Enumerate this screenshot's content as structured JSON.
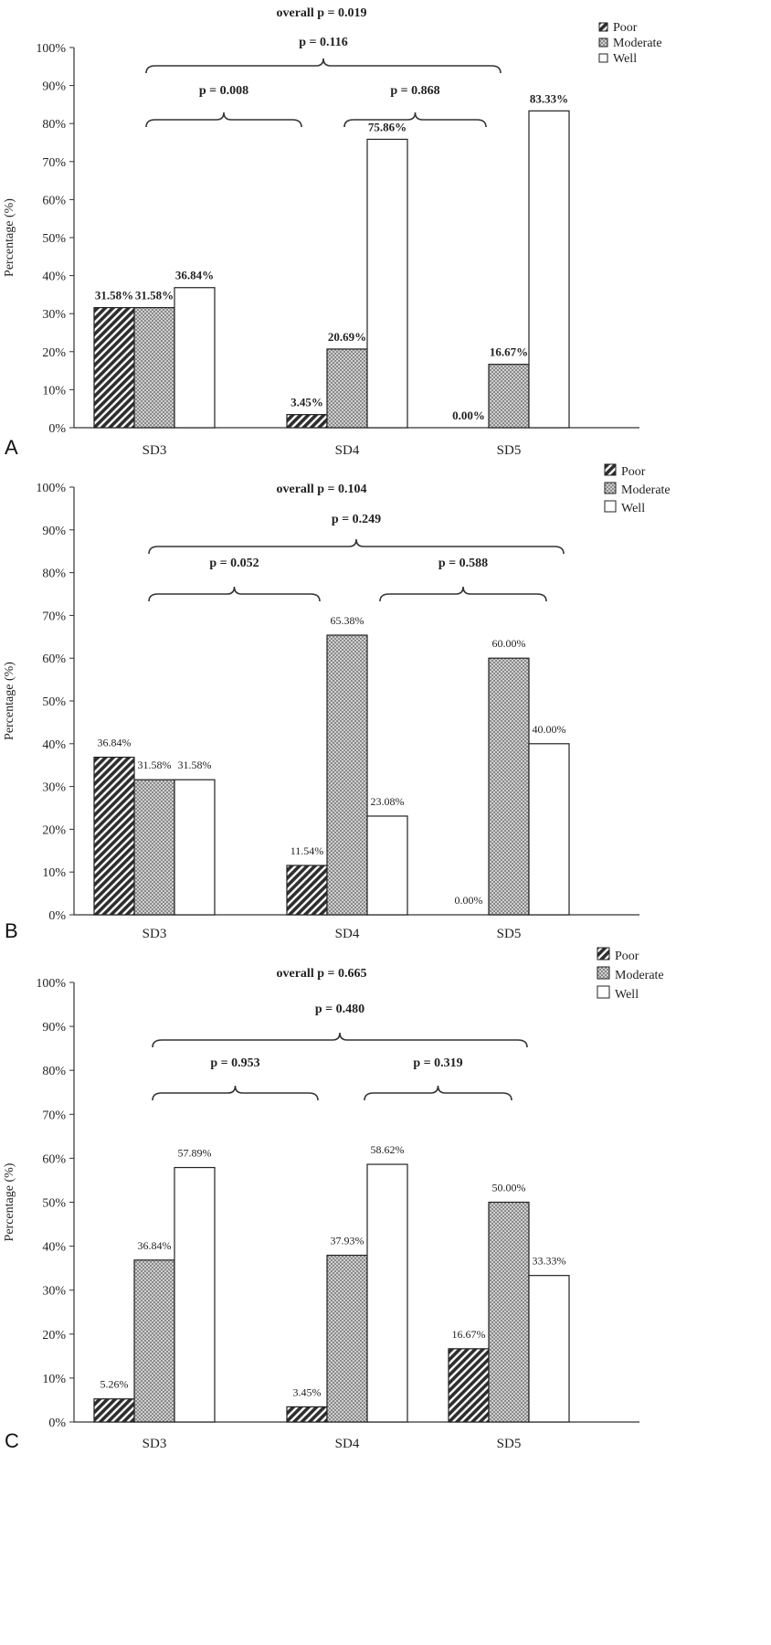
{
  "colors": {
    "poor": "#3a3a3a",
    "moderate": "#b8b8b8",
    "well": "#ffffff",
    "stroke": "#222222"
  },
  "chart_data": [
    {
      "type": "bar",
      "panel_label": "A",
      "categories": [
        "SD3",
        "SD4",
        "SD5"
      ],
      "series": [
        {
          "name": "Poor",
          "values": [
            31.58,
            3.45,
            0.0
          ]
        },
        {
          "name": "Moderate",
          "values": [
            31.58,
            20.69,
            16.67
          ]
        },
        {
          "name": "Well",
          "values": [
            36.84,
            75.86,
            83.33
          ]
        }
      ],
      "value_labels": [
        [
          "31.58%",
          "3.45%",
          "0.00%"
        ],
        [
          "31.58%",
          "20.69%",
          "16.67%"
        ],
        [
          "36.84%",
          "75.86%",
          "83.33%"
        ]
      ],
      "ylabel": "Percentage (%)",
      "yticks": [
        "0%",
        "10%",
        "20%",
        "30%",
        "40%",
        "50%",
        "60%",
        "70%",
        "80%",
        "90%",
        "100%"
      ],
      "ylim": [
        0,
        100
      ],
      "legend": "top-right",
      "annotations": {
        "overall": "overall p = 0.019",
        "p_sd3_sd5": "p = 0.116",
        "p_sd3_sd4": "p = 0.008",
        "p_sd4_sd5": "p = 0.868"
      }
    },
    {
      "type": "bar",
      "panel_label": "B",
      "categories": [
        "SD3",
        "SD4",
        "SD5"
      ],
      "series": [
        {
          "name": "Poor",
          "values": [
            36.84,
            11.54,
            0.0
          ]
        },
        {
          "name": "Moderate",
          "values": [
            31.58,
            65.38,
            60.0
          ]
        },
        {
          "name": "Well",
          "values": [
            31.58,
            23.08,
            40.0
          ]
        }
      ],
      "value_labels": [
        [
          "36.84%",
          "11.54%",
          "0.00%"
        ],
        [
          "31.58%",
          "65.38%",
          "60.00%"
        ],
        [
          "31.58%",
          "23.08%",
          "40.00%"
        ]
      ],
      "ylabel": "Percentage (%)",
      "yticks": [
        "0%",
        "10%",
        "20%",
        "30%",
        "40%",
        "50%",
        "60%",
        "70%",
        "80%",
        "90%",
        "100%"
      ],
      "ylim": [
        0,
        100
      ],
      "legend": "top-right",
      "annotations": {
        "overall": "overall p = 0.104",
        "p_sd3_sd5": "p = 0.249",
        "p_sd3_sd4": "p = 0.052",
        "p_sd4_sd5": "p = 0.588"
      }
    },
    {
      "type": "bar",
      "panel_label": "C",
      "categories": [
        "SD3",
        "SD4",
        "SD5"
      ],
      "series": [
        {
          "name": "Poor",
          "values": [
            5.26,
            3.45,
            16.67
          ]
        },
        {
          "name": "Moderate",
          "values": [
            36.84,
            37.93,
            50.0
          ]
        },
        {
          "name": "Well",
          "values": [
            57.89,
            58.62,
            33.33
          ]
        }
      ],
      "value_labels": [
        [
          "5.26%",
          "3.45%",
          "16.67%"
        ],
        [
          "36.84%",
          "37.93%",
          "50.00%"
        ],
        [
          "57.89%",
          "58.62%",
          "33.33%"
        ]
      ],
      "ylabel": "Percentage (%)",
      "yticks": [
        "0%",
        "10%",
        "20%",
        "30%",
        "40%",
        "50%",
        "60%",
        "70%",
        "80%",
        "90%",
        "100%"
      ],
      "ylim": [
        0,
        100
      ],
      "legend": "top-right",
      "annotations": {
        "overall": "overall p = 0.665",
        "p_sd3_sd5": "p = 0.480",
        "p_sd3_sd4": "p = 0.953",
        "p_sd4_sd5": "p = 0.319"
      }
    }
  ]
}
